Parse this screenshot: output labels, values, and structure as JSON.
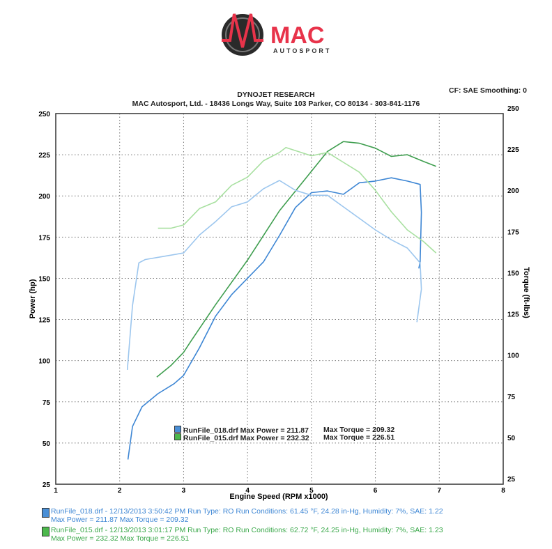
{
  "logo": {
    "brand": "MAC",
    "sub": "AUTOSPORT",
    "color": "#e8334a"
  },
  "header": {
    "title": "DYNOJET RESEARCH",
    "subtitle": "MAC Autosport, Ltd.  - 18436 Longs Way, Suite 103  Parker, CO 80134 - 303-841-1176",
    "settings": "CF: SAE  Smoothing: 0"
  },
  "runs": [
    {
      "swatch": "#4a8fd6",
      "color": "#3d86d4",
      "line1": "RunFile_018.drf - 12/13/2013 3:50:42 PM  Run Type: RO  Run Conditions: 61.45 °F, 24.28 in-Hg,  Humidity:  7%,  SAE: 1.22",
      "line2": "Max Power = 211.87  Max Torque = 209.32",
      "legend_left": "RunFile_018.drf Max Power = 211.87",
      "legend_right": "Max Torque = 209.32"
    },
    {
      "swatch": "#4cb84c",
      "color": "#3aa84a",
      "line1": "RunFile_015.drf - 12/13/2013 3:01:17 PM  Run Type: RO  Run Conditions: 62.72 °F, 24.25 in-Hg,  Humidity:  7%,  SAE: 1.23",
      "line2": "Max Power = 232.32  Max Torque = 226.51",
      "legend_left": "RunFile_015.drf Max Power = 232.32",
      "legend_right": "Max Torque = 226.51"
    }
  ],
  "chart_data": {
    "type": "line",
    "xlabel": "Engine Speed (RPM x1000)",
    "ylabel": "Power (hp)",
    "y2label": "Torque (ft-lbs)",
    "xlim": [
      1,
      8
    ],
    "ylim": [
      25,
      250
    ],
    "y2lim": [
      25,
      250
    ],
    "xticks": [
      "1",
      "2",
      "3",
      "4",
      "5",
      "6",
      "7",
      "8"
    ],
    "yticks": [
      "25",
      "50",
      "75",
      "100",
      "125",
      "150",
      "175",
      "200",
      "225",
      "250"
    ],
    "y2ticks": [
      "25",
      "50",
      "75",
      "100",
      "125",
      "150",
      "175",
      "200",
      "225",
      "250"
    ],
    "grid": true,
    "legend": "bottom-center",
    "series": [
      {
        "name": "RunFile_018 Power",
        "axis": "left",
        "color": "#3d86d4",
        "points": [
          [
            2.13,
            40
          ],
          [
            2.2,
            60
          ],
          [
            2.35,
            72
          ],
          [
            2.6,
            80
          ],
          [
            2.85,
            86
          ],
          [
            3.0,
            91
          ],
          [
            3.25,
            108
          ],
          [
            3.5,
            127
          ],
          [
            3.75,
            140
          ],
          [
            4.0,
            150
          ],
          [
            4.25,
            160
          ],
          [
            4.5,
            176
          ],
          [
            4.75,
            193
          ],
          [
            5.0,
            202
          ],
          [
            5.25,
            203
          ],
          [
            5.5,
            201
          ],
          [
            5.75,
            208
          ],
          [
            6.0,
            209
          ],
          [
            6.25,
            211
          ],
          [
            6.5,
            209
          ],
          [
            6.7,
            207
          ],
          [
            6.72,
            190
          ],
          [
            6.7,
            160
          ],
          [
            6.68,
            156
          ]
        ]
      },
      {
        "name": "RunFile_015 Power",
        "axis": "left",
        "color": "#3f9e4f",
        "points": [
          [
            2.58,
            90
          ],
          [
            2.8,
            97
          ],
          [
            3.0,
            105
          ],
          [
            3.1,
            111
          ],
          [
            3.5,
            134
          ],
          [
            4.0,
            161
          ],
          [
            4.5,
            191
          ],
          [
            5.0,
            215
          ],
          [
            5.25,
            227
          ],
          [
            5.5,
            233
          ],
          [
            5.75,
            232
          ],
          [
            6.0,
            229
          ],
          [
            6.25,
            224
          ],
          [
            6.5,
            225
          ],
          [
            6.75,
            221
          ],
          [
            6.95,
            218
          ]
        ]
      },
      {
        "name": "RunFile_018 Torque",
        "axis": "right",
        "color": "#9cc6ee",
        "points": [
          [
            2.12,
            91
          ],
          [
            2.2,
            130
          ],
          [
            2.3,
            156
          ],
          [
            2.4,
            158
          ],
          [
            2.7,
            160
          ],
          [
            3.0,
            162
          ],
          [
            3.25,
            173
          ],
          [
            3.5,
            181
          ],
          [
            3.75,
            190
          ],
          [
            4.0,
            193
          ],
          [
            4.25,
            201
          ],
          [
            4.5,
            206
          ],
          [
            4.75,
            200
          ],
          [
            5.0,
            197
          ],
          [
            5.25,
            197
          ],
          [
            5.5,
            190
          ],
          [
            5.75,
            183
          ],
          [
            6.0,
            176
          ],
          [
            6.25,
            170
          ],
          [
            6.5,
            165
          ],
          [
            6.7,
            156
          ],
          [
            6.72,
            140
          ],
          [
            6.65,
            120
          ]
        ]
      },
      {
        "name": "RunFile_015 Torque",
        "axis": "right",
        "color": "#a8e0a0",
        "points": [
          [
            2.6,
            177
          ],
          [
            2.8,
            177
          ],
          [
            3.0,
            179
          ],
          [
            3.25,
            189
          ],
          [
            3.5,
            193
          ],
          [
            3.75,
            203
          ],
          [
            4.0,
            208
          ],
          [
            4.25,
            218
          ],
          [
            4.5,
            223
          ],
          [
            4.6,
            226
          ],
          [
            5.0,
            221
          ],
          [
            5.25,
            223
          ],
          [
            5.5,
            217
          ],
          [
            5.75,
            211
          ],
          [
            6.0,
            200
          ],
          [
            6.25,
            187
          ],
          [
            6.5,
            176
          ],
          [
            6.75,
            169
          ],
          [
            6.95,
            162
          ]
        ]
      }
    ]
  }
}
